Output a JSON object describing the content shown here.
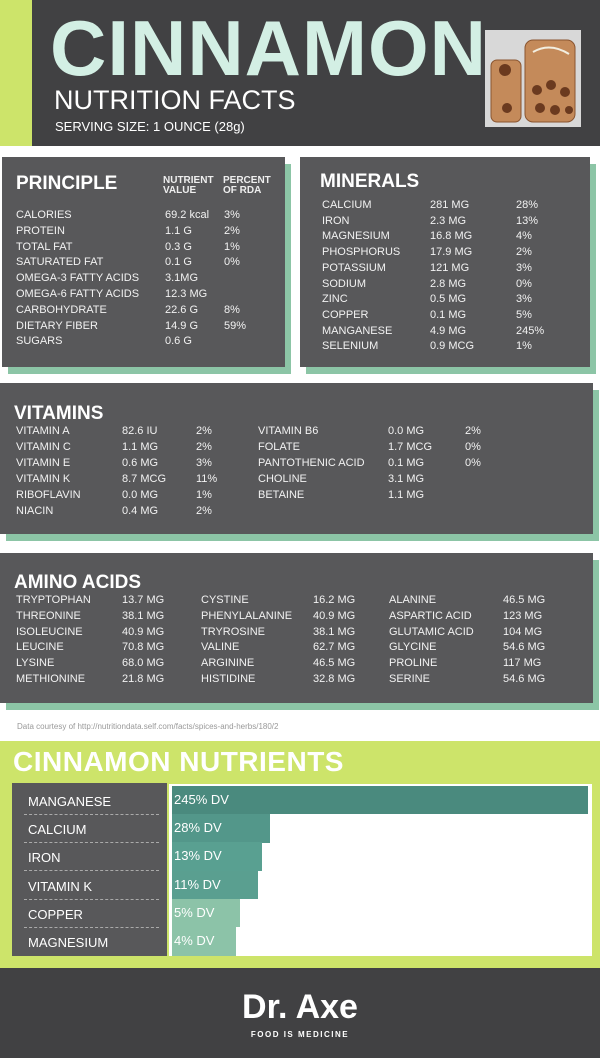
{
  "header": {
    "title": "CINNAMON",
    "subtitle": "NUTRITION FACTS",
    "serving": "SERVING SIZE: 1 OUNCE (28g)"
  },
  "principle": {
    "title": "PRINCIPLE",
    "col_value": "NUTRIENT VALUE",
    "col_pct": "PERCENT OF RDA",
    "rows": [
      [
        "CALORIES",
        "69.2 kcal",
        "3%"
      ],
      [
        "PROTEIN",
        "1.1 G",
        "2%"
      ],
      [
        "TOTAL FAT",
        "0.3 G",
        "1%"
      ],
      [
        "SATURATED FAT",
        "0.1 G",
        "0%"
      ],
      [
        "OMEGA-3 FATTY ACIDS",
        "3.1MG",
        ""
      ],
      [
        "OMEGA-6 FATTY ACIDS",
        "12.3 MG",
        ""
      ],
      [
        "CARBOHYDRATE",
        "22.6 G",
        "8%"
      ],
      [
        "DIETARY FIBER",
        "14.9 G",
        "59%"
      ],
      [
        "SUGARS",
        "0.6 G",
        ""
      ]
    ]
  },
  "minerals": {
    "title": "MINERALS",
    "rows": [
      [
        "CALCIUM",
        "281 MG",
        "28%"
      ],
      [
        "IRON",
        "2.3 MG",
        "13%"
      ],
      [
        "MAGNESIUM",
        "16.8 MG",
        "4%"
      ],
      [
        "PHOSPHORUS",
        "17.9 MG",
        "2%"
      ],
      [
        "POTASSIUM",
        "121 MG",
        "3%"
      ],
      [
        "SODIUM",
        "2.8 MG",
        "0%"
      ],
      [
        "ZINC",
        "0.5 MG",
        "3%"
      ],
      [
        "COPPER",
        "0.1 MG",
        "5%"
      ],
      [
        "MANGANESE",
        "4.9 MG",
        "245%"
      ],
      [
        "SELENIUM",
        "0.9 MCG",
        "1%"
      ]
    ]
  },
  "vitamins": {
    "title": "VITAMINS",
    "left": [
      [
        "VITAMIN A",
        "82.6 IU",
        "2%"
      ],
      [
        "VITAMIN C",
        "1.1 MG",
        "2%"
      ],
      [
        "VITAMIN E",
        "0.6 MG",
        "3%"
      ],
      [
        "VITAMIN K",
        "8.7 MCG",
        "11%"
      ],
      [
        "RIBOFLAVIN",
        "0.0 MG",
        "1%"
      ],
      [
        "NIACIN",
        "0.4 MG",
        "2%"
      ]
    ],
    "right": [
      [
        "VITAMIN B6",
        "0.0 MG",
        "2%"
      ],
      [
        "FOLATE",
        "1.7 MCG",
        "0%"
      ],
      [
        "PANTOTHENIC ACID",
        "0.1 MG",
        "0%"
      ],
      [
        "CHOLINE",
        "3.1 MG",
        ""
      ],
      [
        "BETAINE",
        "1.1 MG",
        ""
      ]
    ]
  },
  "amino": {
    "title": "AMINO ACIDS",
    "col1": [
      [
        "TRYPTOPHAN",
        "13.7 MG"
      ],
      [
        "THREONINE",
        "38.1 MG"
      ],
      [
        "ISOLEUCINE",
        "40.9 MG"
      ],
      [
        "LEUCINE",
        "70.8 MG"
      ],
      [
        "LYSINE",
        "68.0 MG"
      ],
      [
        "METHIONINE",
        "21.8 MG"
      ]
    ],
    "col2": [
      [
        "CYSTINE",
        "16.2 MG"
      ],
      [
        "PHENYLALANINE",
        "40.9 MG"
      ],
      [
        "TRYROSINE",
        "38.1 MG"
      ],
      [
        "VALINE",
        "62.7 MG"
      ],
      [
        "ARGININE",
        "46.5 MG"
      ],
      [
        "HISTIDINE",
        "32.8 MG"
      ]
    ],
    "col3": [
      [
        "ALANINE",
        "46.5 MG"
      ],
      [
        "ASPARTIC ACID",
        "123 MG"
      ],
      [
        "GLUTAMIC ACID",
        "104 MG"
      ],
      [
        "GLYCINE",
        "54.6 MG"
      ],
      [
        "PROLINE",
        "117 MG"
      ],
      [
        "SERINE",
        "54.6 MG"
      ]
    ]
  },
  "credit": "Data courtesy of http://nutritiondata.self.com/facts/spices-and-herbs/180/2",
  "chart_data": {
    "type": "bar",
    "title": "CINNAMON NUTRIENTS",
    "orientation": "horizontal",
    "categories": [
      "MANGANESE",
      "CALCIUM",
      "IRON",
      "VITAMIN K",
      "COPPER",
      "MAGNESIUM"
    ],
    "values": [
      245,
      28,
      13,
      11,
      5,
      4
    ],
    "labels": [
      "245% DV",
      "28% DV",
      "13% DV",
      "11% DV",
      "5% DV",
      "4% DV"
    ],
    "colors": [
      "#4a8a7e",
      "#53978a",
      "#59a091",
      "#5a9f90",
      "#8cc3a8",
      "#8cc3a8"
    ]
  },
  "footer": {
    "logo": "Dr. Axe",
    "tagline": "FOOD IS MEDICINE"
  }
}
